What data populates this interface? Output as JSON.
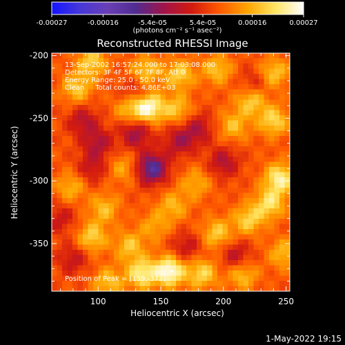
{
  "chart_data": {
    "type": "heatmap",
    "title": "Reconstructed RHESSI Image",
    "xlabel": "Heliocentric X (arcsec)",
    "ylabel": "Heliocentric Y (arcsec)",
    "xlim": [
      63,
      253
    ],
    "ylim": [
      -388,
      -198
    ],
    "xticks": [
      100,
      150,
      200,
      250
    ],
    "yticks": [
      -200,
      -250,
      -300,
      -350
    ],
    "colorbar": {
      "label": "(photons cm⁻² s⁻¹ asec⁻²)",
      "range": [
        -0.00027,
        0.00027
      ],
      "tick_values": [
        -0.00027,
        -0.00016,
        -5.4e-05,
        5.4e-05,
        0.00016,
        0.00027
      ],
      "tick_labels": [
        "-0.00027",
        "-0.00016",
        "-5.4e-05",
        "5.4e-05",
        "0.00016",
        "0.00027"
      ]
    },
    "annotations": [
      "13-Sep-2002 16:57:24.000 to 17:03:08.000",
      "Detectors: 3F 4F 5F 6F 7F 8F, Att 0",
      "Energy Range: 25.0 - 50.0 keV",
      "Clean     Total counts: 4.86E+03"
    ],
    "peak_label": "Position of Peak = [159,-372]",
    "peak": [
      159,
      -372
    ],
    "footer": "1-May-2022 19:15",
    "grid": false,
    "legend": "none",
    "colormap": [
      "#1414ff",
      "#4638d8",
      "#6a3fb6",
      "#502c90",
      "#a0144a",
      "#d21a10",
      "#ff5a00",
      "#ffa500",
      "#ffe664",
      "#ffffff"
    ],
    "blobs": [
      {
        "x": 140,
        "y": -241,
        "value": 0.00026
      },
      {
        "x": 125,
        "y": -242,
        "value": 0.00013
      },
      {
        "x": 163,
        "y": -243,
        "value": 0.00014
      },
      {
        "x": 157,
        "y": -372,
        "value": 0.00027
      },
      {
        "x": 135,
        "y": -374,
        "value": 0.00021
      },
      {
        "x": 183,
        "y": -374,
        "value": 0.00017
      },
      {
        "x": 108,
        "y": -381,
        "value": 0.00014
      },
      {
        "x": 215,
        "y": -375,
        "value": 0.00014
      },
      {
        "x": 95,
        "y": -205,
        "value": 0.00016
      },
      {
        "x": 138,
        "y": -212,
        "value": 0.00015
      },
      {
        "x": 165,
        "y": -215,
        "value": 0.00016
      },
      {
        "x": 195,
        "y": -211,
        "value": 0.00014
      },
      {
        "x": 240,
        "y": -214,
        "value": 0.00015
      },
      {
        "x": 222,
        "y": -236,
        "value": 0.00016
      },
      {
        "x": 240,
        "y": -252,
        "value": 0.00017
      },
      {
        "x": 208,
        "y": -256,
        "value": 0.00013
      },
      {
        "x": 83,
        "y": -226,
        "value": 0.00015
      },
      {
        "x": 245,
        "y": -298,
        "value": 0.00022
      },
      {
        "x": 237,
        "y": -318,
        "value": 0.00018
      },
      {
        "x": 220,
        "y": -331,
        "value": 0.00016
      },
      {
        "x": 195,
        "y": -342,
        "value": 0.00015
      },
      {
        "x": 95,
        "y": -345,
        "value": 0.00016
      },
      {
        "x": 125,
        "y": -352,
        "value": 0.00014
      },
      {
        "x": 105,
        "y": -322,
        "value": 0.00013
      },
      {
        "x": 160,
        "y": -320,
        "value": 0.00012
      },
      {
        "x": 178,
        "y": -302,
        "value": 0.00011
      },
      {
        "x": 78,
        "y": -305,
        "value": 0.00012
      },
      {
        "x": 120,
        "y": -290,
        "value": 0.0001
      },
      {
        "x": 248,
        "y": -358,
        "value": 0.00013
      },
      {
        "x": 145,
        "y": -336,
        "value": 0.0001
      },
      {
        "x": 143,
        "y": -290,
        "value": -0.00027
      },
      {
        "x": 130,
        "y": -262,
        "value": -0.00016
      },
      {
        "x": 165,
        "y": -268,
        "value": -0.00014
      },
      {
        "x": 100,
        "y": -270,
        "value": -0.00013
      },
      {
        "x": 180,
        "y": -258,
        "value": -0.00012
      },
      {
        "x": 88,
        "y": -252,
        "value": -0.00012
      },
      {
        "x": 130,
        "y": -230,
        "value": -0.00011
      },
      {
        "x": 200,
        "y": -285,
        "value": -0.00013
      },
      {
        "x": 95,
        "y": -290,
        "value": -0.0001
      },
      {
        "x": 210,
        "y": -360,
        "value": -0.00012
      },
      {
        "x": 80,
        "y": -362,
        "value": -0.0001
      },
      {
        "x": 170,
        "y": -353,
        "value": -0.0001
      },
      {
        "x": 225,
        "y": -222,
        "value": -9e-05
      },
      {
        "x": 70,
        "y": -330,
        "value": -9e-05
      }
    ]
  }
}
